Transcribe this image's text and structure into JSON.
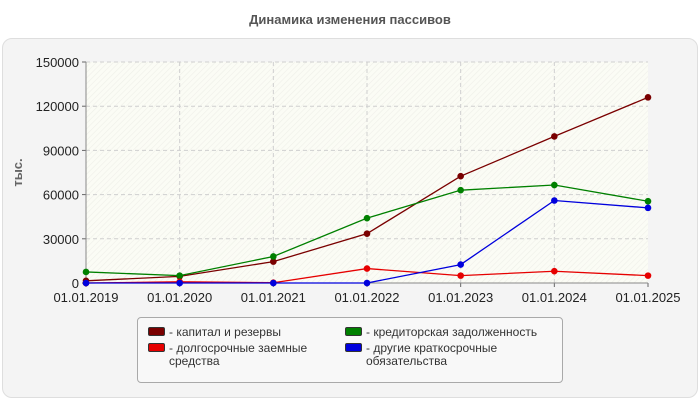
{
  "chart_data": {
    "type": "line",
    "title": "Динамика изменения пассивов",
    "ylabel": "тыс.",
    "xlabel": "",
    "categories": [
      "01.01.2019",
      "01.01.2020",
      "01.01.2021",
      "01.01.2022",
      "01.01.2023",
      "01.01.2024",
      "01.01.2025"
    ],
    "ylim": [
      0,
      150000
    ],
    "yticks": [
      "0",
      "30000",
      "60000",
      "90000",
      "120000",
      "150000"
    ],
    "grid": true,
    "legend_position": "bottom",
    "series": [
      {
        "name": "капитал и резервы",
        "color": "#7a0000",
        "values": [
          1500,
          4500,
          14500,
          33500,
          72500,
          99500,
          126000
        ]
      },
      {
        "name": "кредиторская задолженность",
        "color": "#008000",
        "values": [
          7500,
          5000,
          18000,
          44000,
          63000,
          66500,
          55500
        ]
      },
      {
        "name": "долгосрочные заемные средства",
        "color": "#e60000",
        "values": [
          0,
          800,
          200,
          9800,
          5000,
          8000,
          5000
        ]
      },
      {
        "name": "другие краткосрочные обязательства",
        "color": "#0000dd",
        "values": [
          0,
          0,
          0,
          0,
          12500,
          56000,
          51000
        ]
      }
    ]
  }
}
